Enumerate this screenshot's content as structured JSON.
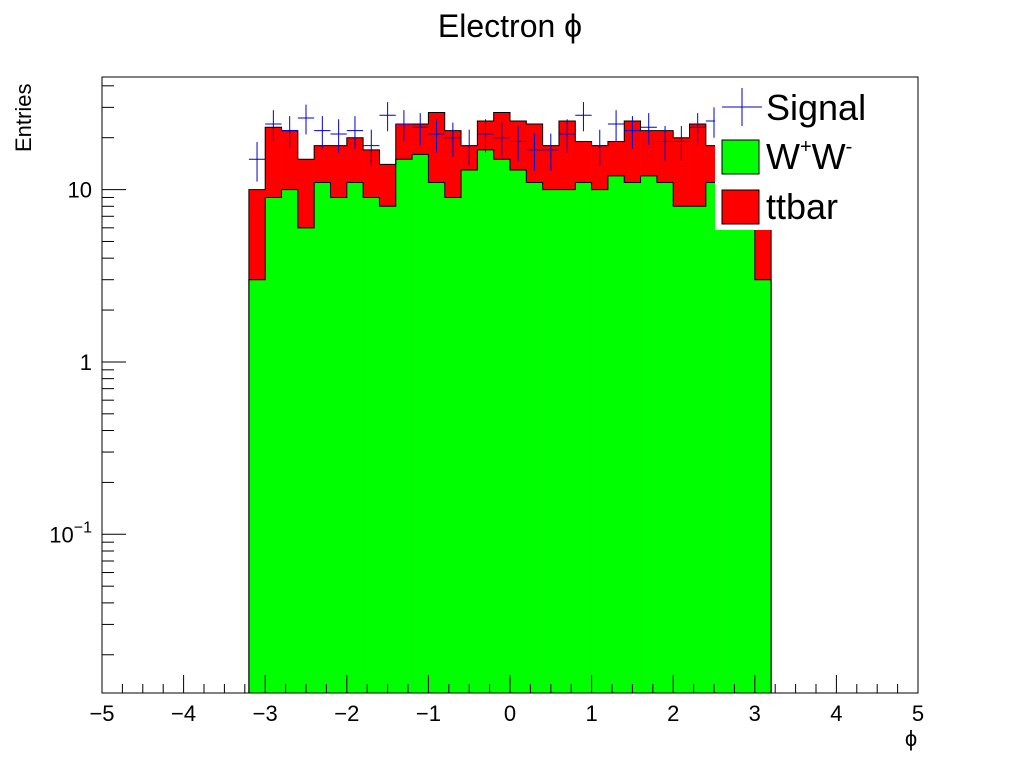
{
  "chart_data": {
    "type": "histogram-stacked",
    "title": "Electron ϕ",
    "xlabel": "ϕ",
    "ylabel": "Entries",
    "xlim": [
      -5,
      5
    ],
    "ylim": [
      0.012,
      45
    ],
    "yscale": "log",
    "grid": false,
    "legend_position": "top-right",
    "x_ticks": [
      -5,
      -4,
      -3,
      -2,
      -1,
      0,
      1,
      2,
      3,
      4,
      5
    ],
    "x_tick_labels": [
      "−5",
      "−4",
      "−3",
      "−2",
      "−1",
      "0",
      "1",
      "2",
      "3",
      "4",
      "5"
    ],
    "y_ticks": [
      {
        "value": 10,
        "base": "10",
        "exp": ""
      },
      {
        "value": 1,
        "base": "1",
        "exp": ""
      },
      {
        "value": 0.1,
        "base": "10",
        "exp": "−1"
      }
    ],
    "bin_edges": [
      -3.2,
      -3.0,
      -2.8,
      -2.6,
      -2.4,
      -2.2,
      -2.0,
      -1.8,
      -1.6,
      -1.4,
      -1.2,
      -1.0,
      -0.8,
      -0.6,
      -0.4,
      -0.2,
      0.0,
      0.2,
      0.4,
      0.6,
      0.8,
      1.0,
      1.2,
      1.4,
      1.6,
      1.8,
      2.0,
      2.2,
      2.4,
      2.6,
      2.8,
      3.0,
      3.2
    ],
    "series": [
      {
        "name": "W⁺W⁻",
        "role": "stack-bottom",
        "color": "#00ff00",
        "values": [
          3,
          9,
          10,
          6,
          11,
          9,
          11,
          9,
          8,
          15,
          16,
          11,
          9,
          13,
          17,
          15,
          13,
          11,
          10,
          10,
          11,
          10,
          12,
          11,
          12,
          11,
          8,
          8,
          11,
          10,
          12,
          3
        ]
      },
      {
        "name": "ttbar",
        "role": "stack-top",
        "color": "#ff0000",
        "values": [
          10,
          23,
          22,
          15,
          18,
          18,
          20,
          17,
          14,
          24,
          24,
          28,
          22,
          18,
          25,
          28,
          25,
          24,
          18,
          25,
          19,
          18,
          19,
          25,
          22,
          22,
          20,
          24,
          18,
          27,
          24,
          10
        ]
      },
      {
        "name": "Signal",
        "role": "data-points",
        "color": "#0000cc",
        "values": [
          15,
          24,
          22,
          26,
          22,
          21,
          22,
          18,
          27,
          24,
          23,
          21,
          20,
          18,
          21,
          20,
          19,
          17,
          17,
          21,
          27,
          18,
          24,
          22,
          23,
          19,
          19,
          23,
          25,
          26,
          15,
          16
        ]
      }
    ]
  },
  "legend": [
    {
      "label": "Signal",
      "marker": "cross"
    },
    {
      "label_main": "W",
      "label_sup1": "+",
      "label_mid": "W",
      "label_sup2": "-",
      "marker": "box"
    },
    {
      "label": "ttbar",
      "marker": "box"
    }
  ]
}
